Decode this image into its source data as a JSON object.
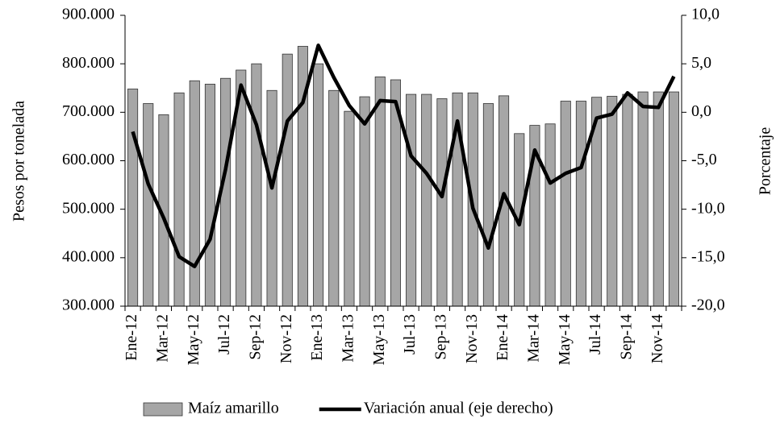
{
  "chart_data": {
    "type": "bar-line",
    "y_label": "Pesos por tonelada",
    "y2_label": "Porcentaje",
    "categories": [
      "Ene-12",
      null,
      "Mar-12",
      null,
      "May-12",
      null,
      "Jul-12",
      null,
      "Sep-12",
      null,
      "Nov-12",
      null,
      "Ene-13",
      null,
      "Mar-13",
      null,
      "May-13",
      null,
      "Jul-13",
      null,
      "Sep-13",
      null,
      "Nov-13",
      null,
      "Ene-14",
      null,
      "Mar-14",
      null,
      "May-14",
      null,
      "Jul-14",
      null,
      "Sep-14",
      null,
      "Nov-14",
      null
    ],
    "series": [
      {
        "name": "Maíz amarillo",
        "type": "bar",
        "color": "#a6a6a6",
        "values": [
          748,
          718,
          695,
          740,
          765,
          758,
          770,
          787,
          800,
          745,
          820,
          836,
          800,
          745,
          702,
          732,
          773,
          767,
          737,
          737,
          728,
          740,
          740,
          718,
          734,
          656,
          673,
          676,
          723,
          723,
          731,
          733,
          737,
          742,
          742,
          742
        ]
      },
      {
        "name": "Variación anual (eje derecho)",
        "type": "line",
        "axis": "y2",
        "color": "#000000",
        "values": [
          -2.0,
          -7.4,
          -10.9,
          -14.9,
          -15.9,
          -13.1,
          -5.9,
          2.8,
          -1.3,
          -7.8,
          -0.9,
          1.0,
          6.9,
          3.6,
          0.7,
          -1.2,
          1.2,
          1.1,
          -4.5,
          -6.3,
          -8.7,
          -0.9,
          -9.9,
          -14.0,
          -8.4,
          -11.6,
          -3.9,
          -7.3,
          -6.3,
          -5.7,
          -0.6,
          -0.2,
          2.0,
          0.6,
          0.5,
          3.7
        ]
      }
    ],
    "ylim": [
      300,
      900
    ],
    "yticks": [
      {
        "value": 300,
        "label": "300.000"
      },
      {
        "value": 400,
        "label": "400.000"
      },
      {
        "value": 500,
        "label": "500.000"
      },
      {
        "value": 600,
        "label": "600.000"
      },
      {
        "value": 700,
        "label": "700.000"
      },
      {
        "value": 800,
        "label": "800.000"
      },
      {
        "value": 900,
        "label": "900.000"
      }
    ],
    "y2lim": [
      -20,
      10
    ],
    "y2ticks": [
      {
        "value": -20,
        "label": "-20,0"
      },
      {
        "value": -15,
        "label": "-15,0"
      },
      {
        "value": -10,
        "label": "-10,0"
      },
      {
        "value": -5,
        "label": "-5,0"
      },
      {
        "value": 0,
        "label": "0,0"
      },
      {
        "value": 5,
        "label": "5,0"
      },
      {
        "value": 10,
        "label": "10,0"
      }
    ],
    "grid": false,
    "legend": "bottom"
  }
}
